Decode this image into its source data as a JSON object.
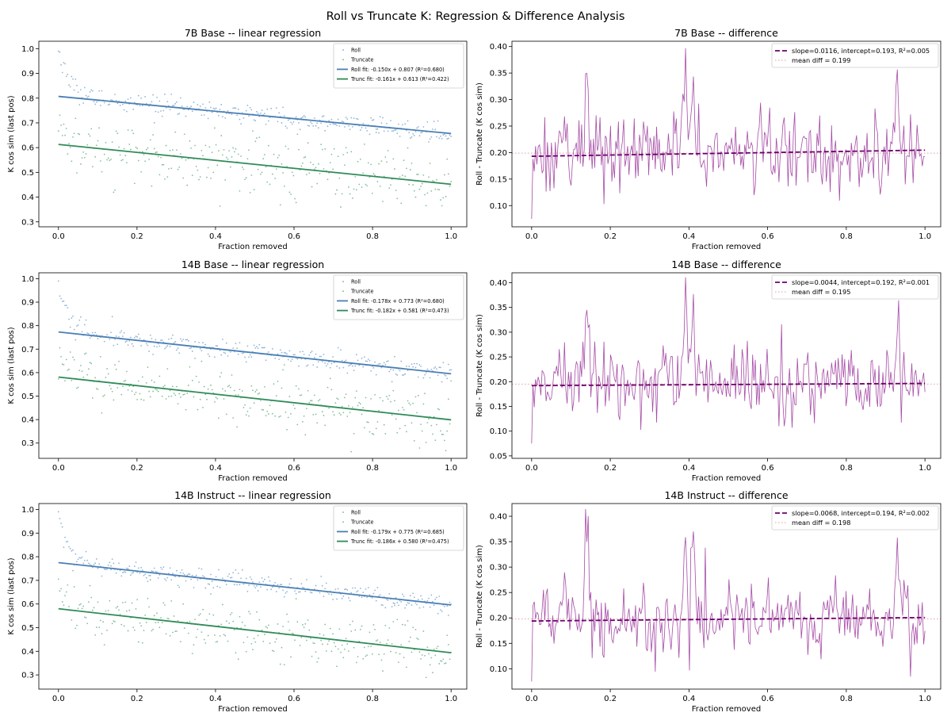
{
  "figure": {
    "title": "Roll vs Truncate K: Regression & Difference Analysis"
  },
  "colors": {
    "roll": "#4a7fb5",
    "roll_scatter": "#93b5d6",
    "trunc": "#2e8b57",
    "trunc_scatter": "#86bf97",
    "diff": "#a64ca6",
    "diff_fit": "#6b006b",
    "mean": "#e0a0a0"
  },
  "chart_data": [
    {
      "id": "reg-7b",
      "type": "scatter",
      "title": "7B Base -- linear regression",
      "xlabel": "Fraction removed",
      "ylabel": "K cos sim (last pos)",
      "xlim": [
        -0.05,
        1.04
      ],
      "ylim": [
        0.28,
        1.03
      ],
      "xticks": [
        "0.0",
        "0.2",
        "0.4",
        "0.6",
        "0.8",
        "1.0"
      ],
      "yticks": [
        "0.3",
        "0.4",
        "0.5",
        "0.6",
        "0.7",
        "0.8",
        "0.9",
        "1.0"
      ],
      "legend_position": "top-right",
      "legend": [
        "Roll",
        "Truncate",
        "Roll fit: -0.150x + 0.807 (R²=0.680)",
        "Trunc fit: -0.161x + 0.613 (R²=0.422)"
      ],
      "series": [
        {
          "name": "Roll",
          "kind": "scatter",
          "slope": -0.15,
          "intercept": 0.807,
          "noise": 0.02
        },
        {
          "name": "Truncate",
          "kind": "scatter",
          "slope": -0.161,
          "intercept": 0.613,
          "noise": 0.06
        },
        {
          "name": "Roll fit: -0.150x + 0.807 (R²=0.680)",
          "kind": "line",
          "x": [
            0.0,
            1.0
          ],
          "y": [
            0.807,
            0.657
          ]
        },
        {
          "name": "Trunc fit: -0.161x + 0.613 (R²=0.422)",
          "kind": "line",
          "x": [
            0.0,
            1.0
          ],
          "y": [
            0.613,
            0.452
          ]
        }
      ]
    },
    {
      "id": "diff-7b",
      "type": "line",
      "title": "7B Base -- difference",
      "xlabel": "Fraction removed",
      "ylabel": "Roll - Truncate (K cos sim)",
      "xlim": [
        -0.05,
        1.04
      ],
      "ylim": [
        0.06,
        0.41
      ],
      "xticks": [
        "0.0",
        "0.2",
        "0.4",
        "0.6",
        "0.8",
        "1.0"
      ],
      "yticks": [
        "0.10",
        "0.15",
        "0.20",
        "0.25",
        "0.30",
        "0.35",
        "0.40"
      ],
      "legend_position": "top-right",
      "legend": [
        "slope=0.0116, intercept=0.193, R²=0.005",
        "mean diff = 0.199"
      ],
      "series": [
        {
          "name": "difference",
          "kind": "line",
          "mean": 0.199
        },
        {
          "name": "slope=0.0116, intercept=0.193, R²=0.005",
          "kind": "fit",
          "x": [
            0.0,
            1.0
          ],
          "y": [
            0.193,
            0.2046
          ]
        },
        {
          "name": "mean diff = 0.199",
          "kind": "hline",
          "y": 0.199
        }
      ]
    },
    {
      "id": "reg-14b",
      "type": "scatter",
      "title": "14B Base -- linear regression",
      "xlabel": "Fraction removed",
      "ylabel": "K cos sim (last pos)",
      "xlim": [
        -0.05,
        1.04
      ],
      "ylim": [
        0.235,
        1.025
      ],
      "xticks": [
        "0.0",
        "0.2",
        "0.4",
        "0.6",
        "0.8",
        "1.0"
      ],
      "yticks": [
        "0.3",
        "0.4",
        "0.5",
        "0.6",
        "0.7",
        "0.8",
        "0.9",
        "1.0"
      ],
      "legend_position": "top-right",
      "legend": [
        "Roll",
        "Truncate",
        "Roll fit: -0.178x + 0.773 (R²=0.680)",
        "Trunc fit: -0.182x + 0.581 (R²=0.473)"
      ],
      "series": [
        {
          "name": "Roll",
          "kind": "scatter",
          "slope": -0.178,
          "intercept": 0.773,
          "noise": 0.02
        },
        {
          "name": "Truncate",
          "kind": "scatter",
          "slope": -0.182,
          "intercept": 0.581,
          "noise": 0.06
        },
        {
          "name": "Roll fit: -0.178x + 0.773 (R²=0.680)",
          "kind": "line",
          "x": [
            0.0,
            1.0
          ],
          "y": [
            0.773,
            0.595
          ]
        },
        {
          "name": "Trunc fit: -0.182x + 0.581 (R²=0.473)",
          "kind": "line",
          "x": [
            0.0,
            1.0
          ],
          "y": [
            0.581,
            0.399
          ]
        }
      ]
    },
    {
      "id": "diff-14b",
      "type": "line",
      "title": "14B Base -- difference",
      "xlabel": "Fraction removed",
      "ylabel": "Roll - Truncate (K cos sim)",
      "xlim": [
        -0.05,
        1.04
      ],
      "ylim": [
        0.045,
        0.42
      ],
      "xticks": [
        "0.0",
        "0.2",
        "0.4",
        "0.6",
        "0.8",
        "1.0"
      ],
      "yticks": [
        "0.05",
        "0.10",
        "0.15",
        "0.20",
        "0.25",
        "0.30",
        "0.35",
        "0.40"
      ],
      "legend_position": "top-right",
      "legend": [
        "slope=0.0044, intercept=0.192, R²=0.001",
        "mean diff = 0.195"
      ],
      "series": [
        {
          "name": "difference",
          "kind": "line",
          "mean": 0.195
        },
        {
          "name": "slope=0.0044, intercept=0.192, R²=0.001",
          "kind": "fit",
          "x": [
            0.0,
            1.0
          ],
          "y": [
            0.192,
            0.1964
          ]
        },
        {
          "name": "mean diff = 0.195",
          "kind": "hline",
          "y": 0.195
        }
      ]
    },
    {
      "id": "reg-14bi",
      "type": "scatter",
      "title": "14B Instruct -- linear regression",
      "xlabel": "Fraction removed",
      "ylabel": "K cos sim (last pos)",
      "xlim": [
        -0.05,
        1.04
      ],
      "ylim": [
        0.24,
        1.025
      ],
      "xticks": [
        "0.0",
        "0.2",
        "0.4",
        "0.6",
        "0.8",
        "1.0"
      ],
      "yticks": [
        "0.3",
        "0.4",
        "0.5",
        "0.6",
        "0.7",
        "0.8",
        "0.9",
        "1.0"
      ],
      "legend_position": "top-right",
      "legend": [
        "Roll",
        "Truncate",
        "Roll fit: -0.179x + 0.775 (R²=0.685)",
        "Trunc fit: -0.186x + 0.580 (R²=0.475)"
      ],
      "series": [
        {
          "name": "Roll",
          "kind": "scatter",
          "slope": -0.179,
          "intercept": 0.775,
          "noise": 0.02
        },
        {
          "name": "Truncate",
          "kind": "scatter",
          "slope": -0.186,
          "intercept": 0.58,
          "noise": 0.06
        },
        {
          "name": "Roll fit: -0.179x + 0.775 (R²=0.685)",
          "kind": "line",
          "x": [
            0.0,
            1.0
          ],
          "y": [
            0.775,
            0.596
          ]
        },
        {
          "name": "Trunc fit: -0.186x + 0.580 (R²=0.475)",
          "kind": "line",
          "x": [
            0.0,
            1.0
          ],
          "y": [
            0.58,
            0.394
          ]
        }
      ]
    },
    {
      "id": "diff-14bi",
      "type": "line",
      "title": "14B Instruct -- difference",
      "xlabel": "Fraction removed",
      "ylabel": "Roll - Truncate (K cos sim)",
      "xlim": [
        -0.05,
        1.04
      ],
      "ylim": [
        0.06,
        0.425
      ],
      "xticks": [
        "0.0",
        "0.2",
        "0.4",
        "0.6",
        "0.8",
        "1.0"
      ],
      "yticks": [
        "0.10",
        "0.15",
        "0.20",
        "0.25",
        "0.30",
        "0.35",
        "0.40"
      ],
      "legend_position": "top-right",
      "legend": [
        "slope=0.0068, intercept=0.194, R²=0.002",
        "mean diff = 0.198"
      ],
      "series": [
        {
          "name": "difference",
          "kind": "line",
          "mean": 0.198
        },
        {
          "name": "slope=0.0068, intercept=0.194, R²=0.002",
          "kind": "fit",
          "x": [
            0.0,
            1.0
          ],
          "y": [
            0.194,
            0.2008
          ]
        },
        {
          "name": "mean diff = 0.198",
          "kind": "hline",
          "y": 0.198
        }
      ]
    }
  ]
}
